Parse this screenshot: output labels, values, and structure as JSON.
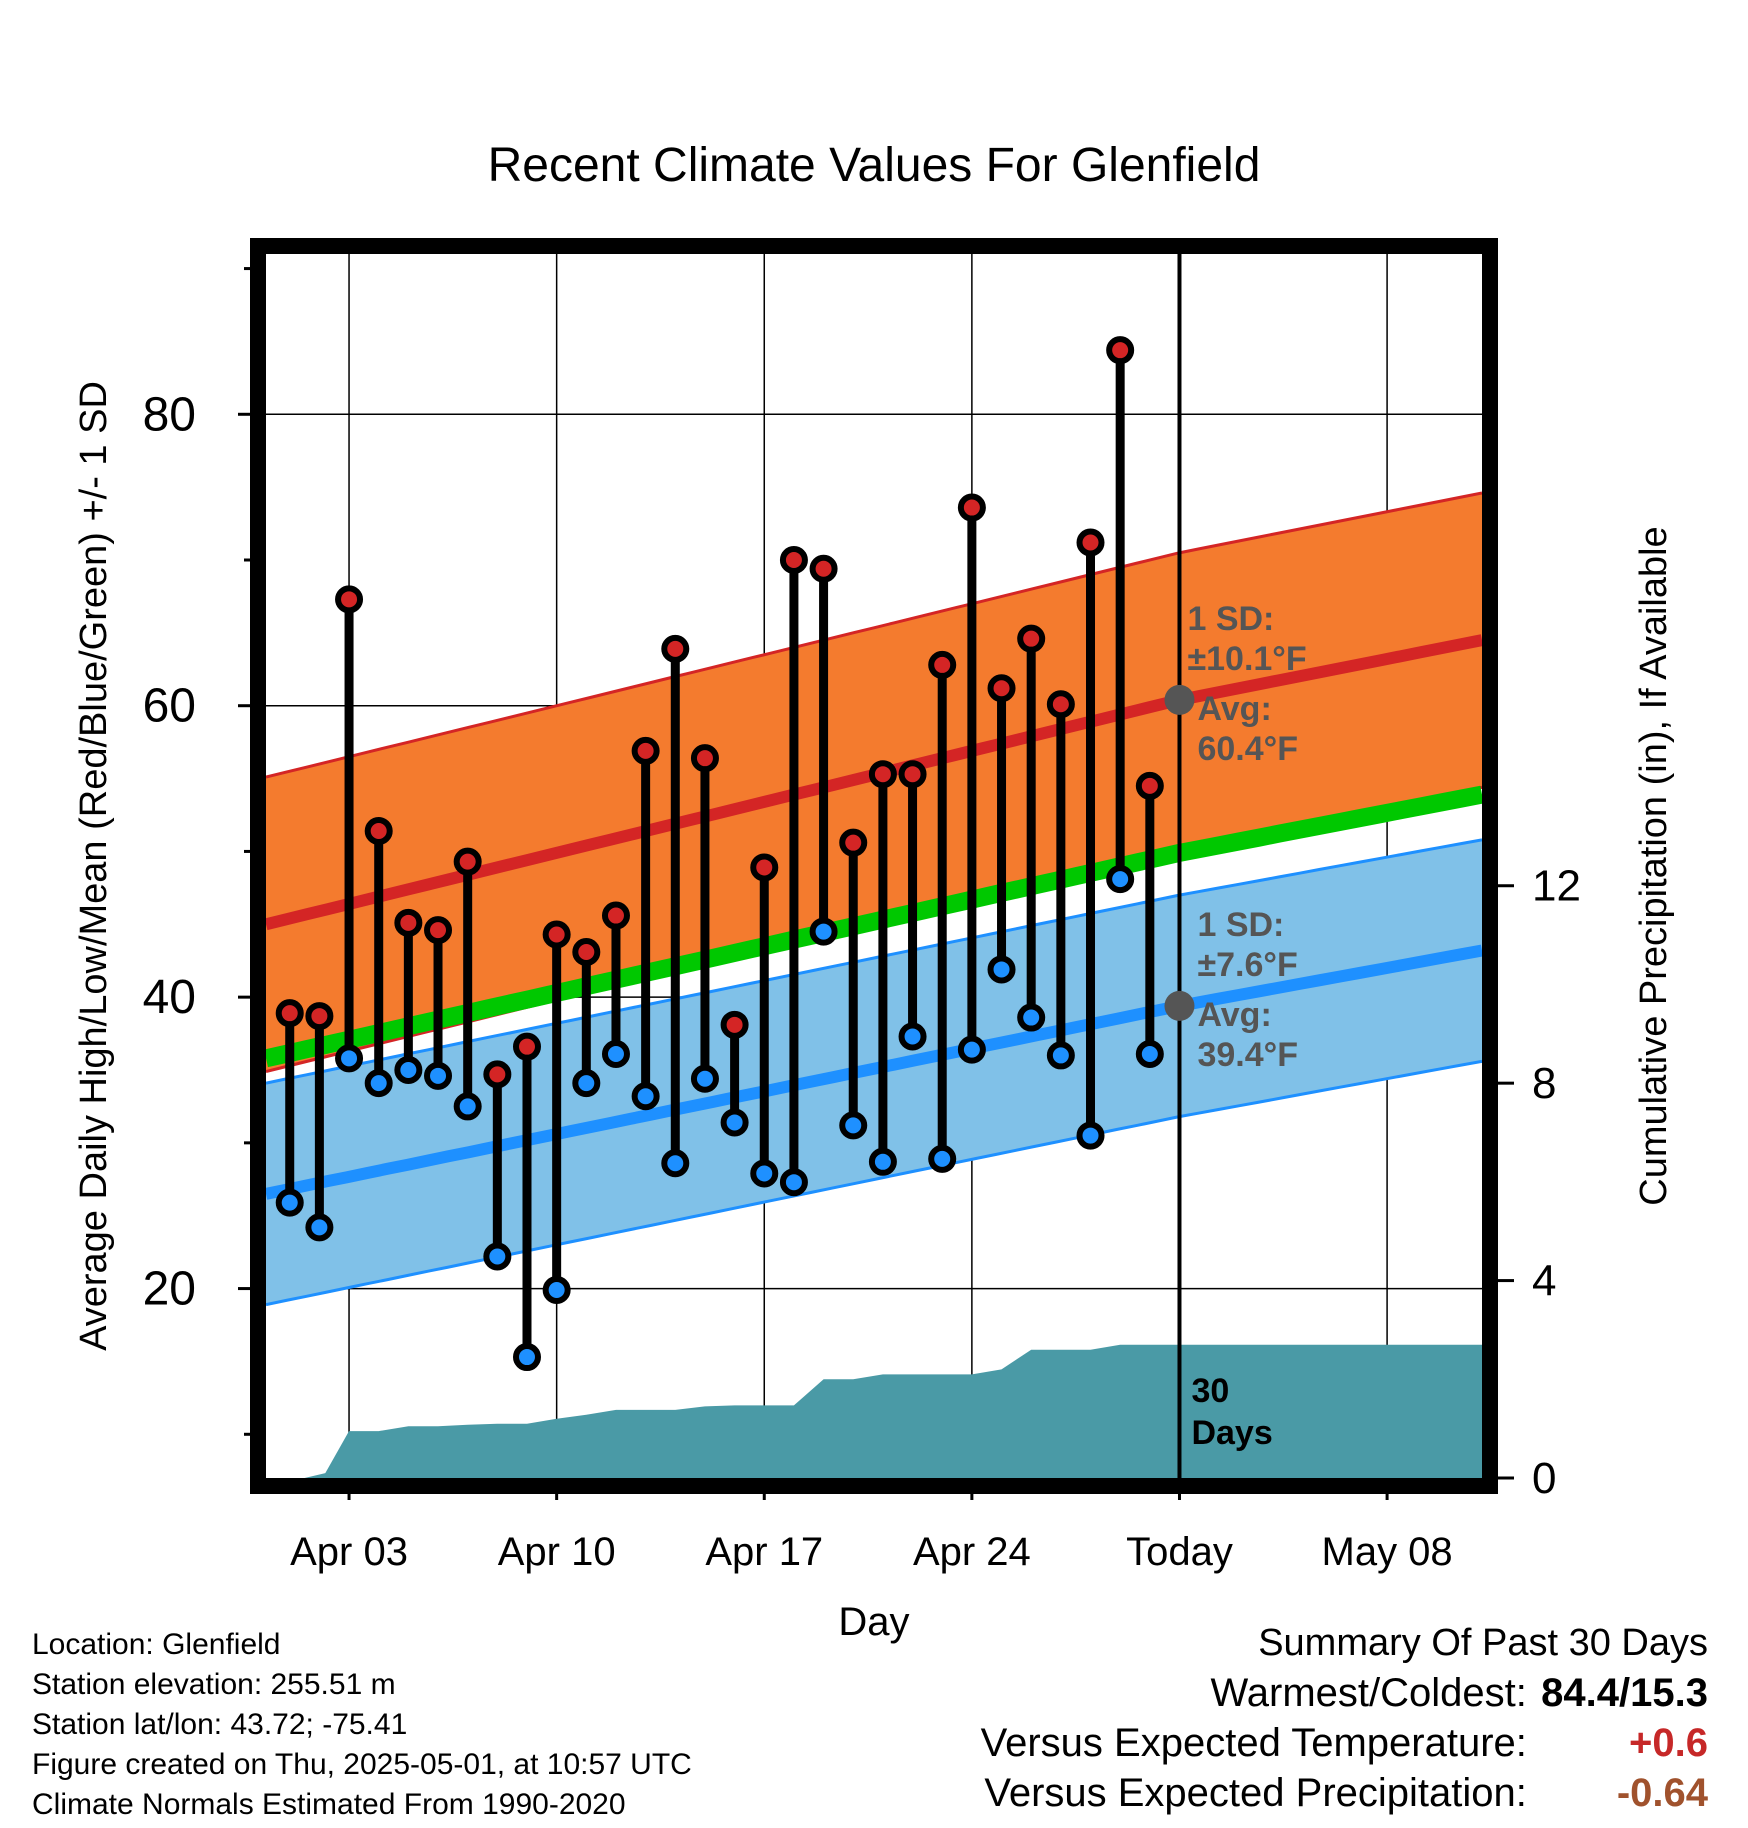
{
  "chart_data": {
    "type": "line",
    "title": "Recent Climate Values For Glenfield",
    "xlabel": "Day",
    "ylabel_left": "Average Daily High/Low/Mean (Red/Blue/Green) +/- 1 SD",
    "ylabel_right": "Cumulative Precipitation (in), If Available",
    "x_tick_labels": [
      "Apr 03",
      "Apr 10",
      "Apr 17",
      "Apr 24",
      "Today",
      "May 08"
    ],
    "x_tick_days": [
      3,
      10,
      17,
      24,
      31,
      38
    ],
    "xlim": [
      0.2,
      41.2
    ],
    "ylim_left": [
      7,
      91
    ],
    "y_ticks_left": [
      20,
      40,
      60,
      80
    ],
    "ylim_right": [
      0,
      24.8
    ],
    "y_ticks_right": [
      0,
      4,
      8,
      12
    ],
    "grid": true,
    "today_day": 31,
    "today_label": "30\nDays",
    "daily_days": [
      1,
      2,
      3,
      4,
      5,
      6,
      7,
      8,
      9,
      10,
      11,
      12,
      13,
      14,
      15,
      16,
      17,
      18,
      19,
      20,
      21,
      22,
      23,
      24,
      25,
      26,
      27,
      28,
      29,
      30
    ],
    "daily_high": [
      38.9,
      38.7,
      67.3,
      51.4,
      45.1,
      44.6,
      49.3,
      34.7,
      36.6,
      44.3,
      43.1,
      45.6,
      56.9,
      63.9,
      56.4,
      38.1,
      48.9,
      70.0,
      69.4,
      50.6,
      55.3,
      55.3,
      62.8,
      73.6,
      61.2,
      64.6,
      60.1,
      71.2,
      84.4,
      54.5
    ],
    "daily_low": [
      25.9,
      24.2,
      35.8,
      34.1,
      35.0,
      34.6,
      32.5,
      22.2,
      15.3,
      19.9,
      34.1,
      36.1,
      33.2,
      28.6,
      34.4,
      31.4,
      27.9,
      27.3,
      44.5,
      31.2,
      28.7,
      37.3,
      28.9,
      36.4,
      41.9,
      38.6,
      36.0,
      30.5,
      48.1,
      36.1
    ],
    "normal_high": {
      "days": [
        0.2,
        31,
        41.2
      ],
      "avg": [
        45.0,
        60.4,
        64.5
      ],
      "sd": 10.1,
      "sd_label": "1 SD:\n±10.1°F",
      "avg_label": "Avg:\n60.4°F"
    },
    "normal_low": {
      "days": [
        0.2,
        31,
        41.2
      ],
      "avg": [
        26.5,
        39.4,
        43.2
      ],
      "sd": 7.6,
      "sd_label": "1 SD:\n±7.6°F",
      "avg_label": "Avg:\n39.4°F"
    },
    "normal_mean": {
      "days": [
        0.2,
        31,
        41.2
      ],
      "avg": [
        35.8,
        49.9,
        53.9
      ]
    },
    "precip_cumulative": {
      "days": [
        0.2,
        1.5,
        2.2,
        3,
        4,
        5,
        6,
        7,
        8,
        9,
        10,
        11,
        12,
        13,
        14,
        15,
        16,
        17,
        18,
        19,
        20,
        21,
        22,
        23,
        24,
        25,
        26,
        27,
        28,
        29,
        30,
        31,
        41.2
      ],
      "values": [
        0,
        0,
        0.1,
        0.95,
        0.95,
        1.05,
        1.05,
        1.08,
        1.1,
        1.1,
        1.2,
        1.28,
        1.38,
        1.38,
        1.38,
        1.45,
        1.47,
        1.47,
        1.47,
        2.0,
        2.0,
        2.1,
        2.1,
        2.1,
        2.1,
        2.2,
        2.6,
        2.6,
        2.6,
        2.7,
        2.7,
        2.7,
        2.7
      ]
    },
    "colors": {
      "high": "#d42525",
      "low": "#1e90ff",
      "mean": "#00c800",
      "high_band": "#f47b2e",
      "low_band": "#80c1e8",
      "precip": "#4a9aa6",
      "annotation": "#555555"
    }
  },
  "footer": {
    "location": "Location: Glenfield",
    "elevation": "Station elevation: 255.51 m",
    "latlon": "Station lat/lon: 43.72; -75.41",
    "created": "Figure created on Thu, 2025-05-01, at 10:57 UTC",
    "normals": "Climate Normals Estimated From 1990-2020"
  },
  "summary": {
    "heading": "Summary Of Past 30 Days",
    "warmest_coldest_label": "Warmest/Coldest:",
    "warmest_coldest_value": "84.4/15.3",
    "temp_label": "Versus Expected Temperature:",
    "temp_value": "+0.6",
    "temp_color": "#c62828",
    "precip_label": "Versus Expected Precipitation:",
    "precip_value": "-0.64",
    "precip_color": "#a0522d"
  }
}
